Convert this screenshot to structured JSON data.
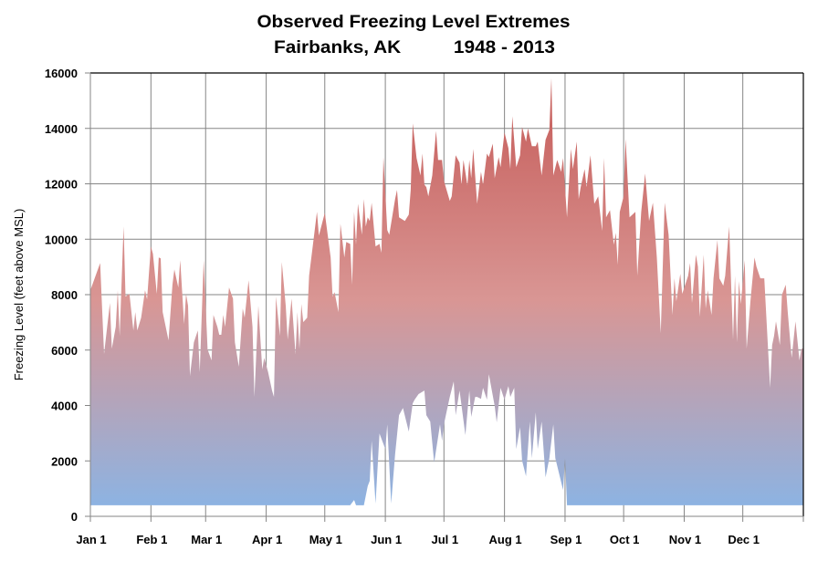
{
  "chart_data": {
    "type": "area",
    "title": "Observed Freezing Level Extremes",
    "subtitle": "Fairbanks, AK          1948 - 2013",
    "xlabel": "",
    "ylabel": "Freezing Level (feet above MSL)",
    "ylim": [
      0,
      16000
    ],
    "yticks": [
      "0",
      "2000",
      "4000",
      "6000",
      "8000",
      "10000",
      "12000",
      "14000",
      "16000"
    ],
    "xticks": [
      "Jan 1",
      "Feb 1",
      "Mar 1",
      "Apr 1",
      "May 1",
      "Jun 1",
      "Jul 1",
      "Aug 1",
      "Sep 1",
      "Oct 1",
      "Nov 1",
      "Dec 1"
    ],
    "grid": true,
    "legend": "none",
    "colors": {
      "top": "#c55a57",
      "middle": "#d99694",
      "bottom": "#8db3e2",
      "grid": "#868686"
    },
    "series": [
      {
        "role": "daily maximum",
        "points": [
          [
            "01-01",
            8160
          ],
          [
            "01-06",
            9140
          ],
          [
            "01-08",
            5860
          ],
          [
            "01-11",
            7700
          ],
          [
            "01-12",
            6050
          ],
          [
            "01-14",
            6840
          ],
          [
            "01-15",
            8160
          ],
          [
            "01-16",
            6510
          ],
          [
            "01-18",
            10460
          ],
          [
            "01-19",
            7930
          ],
          [
            "01-21",
            8030
          ],
          [
            "01-23",
            6710
          ],
          [
            "01-24",
            7370
          ],
          [
            "01-25",
            6710
          ],
          [
            "01-27",
            7170
          ],
          [
            "01-29",
            8160
          ],
          [
            "01-30",
            7830
          ],
          [
            "02-01",
            9740
          ],
          [
            "02-02",
            9470
          ],
          [
            "02-04",
            8030
          ],
          [
            "02-05",
            9340
          ],
          [
            "02-06",
            9310
          ],
          [
            "02-07",
            7370
          ],
          [
            "02-10",
            6350
          ],
          [
            "02-12",
            8360
          ],
          [
            "02-13",
            8910
          ],
          [
            "02-15",
            8260
          ],
          [
            "02-16",
            9240
          ],
          [
            "02-18",
            6940
          ],
          [
            "02-19",
            8030
          ],
          [
            "02-20",
            7600
          ],
          [
            "02-21",
            5070
          ],
          [
            "02-23",
            6280
          ],
          [
            "02-25",
            6710
          ],
          [
            "02-26",
            5200
          ],
          [
            "02-28",
            9240
          ],
          [
            "03-02",
            6020
          ],
          [
            "03-04",
            5630
          ],
          [
            "03-05",
            7270
          ],
          [
            "03-07",
            6840
          ],
          [
            "03-08",
            6550
          ],
          [
            "03-09",
            6550
          ],
          [
            "03-10",
            7270
          ],
          [
            "03-11",
            6840
          ],
          [
            "03-13",
            8260
          ],
          [
            "03-15",
            7860
          ],
          [
            "03-16",
            6280
          ],
          [
            "03-18",
            5400
          ],
          [
            "03-20",
            7500
          ],
          [
            "03-21",
            7170
          ],
          [
            "03-23",
            8520
          ],
          [
            "03-25",
            6840
          ],
          [
            "03-26",
            4310
          ],
          [
            "03-28",
            7600
          ],
          [
            "03-30",
            5300
          ],
          [
            "03-31",
            5720
          ],
          [
            "04-02",
            5200
          ],
          [
            "04-04",
            4540
          ],
          [
            "04-05",
            4310
          ],
          [
            "04-06",
            7930
          ],
          [
            "04-08",
            6510
          ],
          [
            "04-09",
            9180
          ],
          [
            "04-11",
            7600
          ],
          [
            "04-12",
            6380
          ],
          [
            "04-14",
            7860
          ],
          [
            "04-16",
            5860
          ],
          [
            "04-17",
            7370
          ],
          [
            "04-18",
            6050
          ],
          [
            "04-19",
            7660
          ],
          [
            "04-20",
            7010
          ],
          [
            "04-22",
            7170
          ],
          [
            "04-23",
            8680
          ],
          [
            "04-25",
            9830
          ],
          [
            "04-27",
            10990
          ],
          [
            "04-28",
            10130
          ],
          [
            "05-01",
            10950
          ],
          [
            "05-04",
            9340
          ],
          [
            "05-05",
            7930
          ],
          [
            "05-06",
            8090
          ],
          [
            "05-08",
            7370
          ],
          [
            "05-09",
            10560
          ],
          [
            "05-11",
            9340
          ],
          [
            "05-12",
            9900
          ],
          [
            "05-14",
            9830
          ],
          [
            "05-15",
            8360
          ],
          [
            "05-16",
            10990
          ],
          [
            "05-17",
            9800
          ],
          [
            "05-18",
            11280
          ],
          [
            "05-20",
            10160
          ],
          [
            "05-21",
            11450
          ],
          [
            "05-22",
            10460
          ],
          [
            "05-23",
            10790
          ],
          [
            "05-24",
            10660
          ],
          [
            "05-25",
            11320
          ],
          [
            "05-27",
            9740
          ],
          [
            "05-29",
            9830
          ],
          [
            "05-30",
            9510
          ],
          [
            "05-31",
            12960
          ],
          [
            "06-02",
            10330
          ],
          [
            "06-03",
            10160
          ],
          [
            "06-06",
            11450
          ],
          [
            "06-07",
            11780
          ],
          [
            "06-08",
            10790
          ],
          [
            "06-11",
            10660
          ],
          [
            "06-13",
            10890
          ],
          [
            "06-14",
            11780
          ],
          [
            "06-15",
            14180
          ],
          [
            "06-17",
            12930
          ],
          [
            "06-19",
            12300
          ],
          [
            "06-20",
            13090
          ],
          [
            "06-21",
            11970
          ],
          [
            "06-22",
            11880
          ],
          [
            "06-23",
            11550
          ],
          [
            "06-25",
            12300
          ],
          [
            "06-27",
            13910
          ],
          [
            "06-28",
            12860
          ],
          [
            "06-30",
            12860
          ],
          [
            "07-01",
            12110
          ],
          [
            "07-04",
            11380
          ],
          [
            "07-05",
            11550
          ],
          [
            "07-07",
            13030
          ],
          [
            "07-09",
            12760
          ],
          [
            "07-10",
            11970
          ],
          [
            "07-11",
            12860
          ],
          [
            "07-13",
            11940
          ],
          [
            "07-14",
            12860
          ],
          [
            "07-15",
            12200
          ],
          [
            "07-16",
            13260
          ],
          [
            "07-18",
            11280
          ],
          [
            "07-20",
            12430
          ],
          [
            "07-21",
            11970
          ],
          [
            "07-23",
            13090
          ],
          [
            "07-24",
            12960
          ],
          [
            "07-26",
            13450
          ],
          [
            "07-27",
            12200
          ],
          [
            "07-29",
            12960
          ],
          [
            "07-30",
            12600
          ],
          [
            "08-01",
            13850
          ],
          [
            "08-03",
            13290
          ],
          [
            "08-04",
            12530
          ],
          [
            "08-05",
            14440
          ],
          [
            "08-07",
            12600
          ],
          [
            "08-09",
            13030
          ],
          [
            "08-10",
            14050
          ],
          [
            "08-12",
            13520
          ],
          [
            "08-13",
            14000
          ],
          [
            "08-15",
            13360
          ],
          [
            "08-17",
            13360
          ],
          [
            "08-18",
            13520
          ],
          [
            "08-20",
            12300
          ],
          [
            "08-22",
            13590
          ],
          [
            "08-24",
            13950
          ],
          [
            "08-25",
            15820
          ],
          [
            "08-26",
            12300
          ],
          [
            "08-28",
            12860
          ],
          [
            "08-30",
            12430
          ],
          [
            "08-31",
            12930
          ],
          [
            "09-02",
            10790
          ],
          [
            "09-04",
            13260
          ],
          [
            "09-05",
            12530
          ],
          [
            "09-07",
            13520
          ],
          [
            "09-08",
            11450
          ],
          [
            "09-09",
            11880
          ],
          [
            "09-11",
            12530
          ],
          [
            "09-12",
            11880
          ],
          [
            "09-14",
            13030
          ],
          [
            "09-16",
            11280
          ],
          [
            "09-18",
            11550
          ],
          [
            "09-20",
            10300
          ],
          [
            "09-21",
            12930
          ],
          [
            "09-22",
            10790
          ],
          [
            "09-24",
            11050
          ],
          [
            "09-26",
            9800
          ],
          [
            "09-27",
            10230
          ],
          [
            "09-28",
            9080
          ],
          [
            "09-29",
            10990
          ],
          [
            "10-01",
            11550
          ],
          [
            "10-02",
            13620
          ],
          [
            "10-04",
            10790
          ],
          [
            "10-07",
            10990
          ],
          [
            "10-08",
            8680
          ],
          [
            "10-10",
            10990
          ],
          [
            "10-12",
            12370
          ],
          [
            "10-14",
            10660
          ],
          [
            "10-15",
            10990
          ],
          [
            "10-16",
            11320
          ],
          [
            "10-18",
            9340
          ],
          [
            "10-20",
            6610
          ],
          [
            "10-22",
            11320
          ],
          [
            "10-24",
            10160
          ],
          [
            "10-26",
            7270
          ],
          [
            "10-27",
            8590
          ],
          [
            "10-28",
            7760
          ],
          [
            "10-30",
            8750
          ],
          [
            "10-31",
            8030
          ],
          [
            "11-03",
            8680
          ],
          [
            "11-04",
            9140
          ],
          [
            "11-05",
            7700
          ],
          [
            "11-07",
            9440
          ],
          [
            "11-08",
            9010
          ],
          [
            "11-09",
            7200
          ],
          [
            "11-11",
            9440
          ],
          [
            "11-12",
            7500
          ],
          [
            "11-13",
            8160
          ],
          [
            "11-15",
            7270
          ],
          [
            "11-16",
            8590
          ],
          [
            "11-18",
            9970
          ],
          [
            "11-19",
            8590
          ],
          [
            "11-21",
            8320
          ],
          [
            "11-22",
            8680
          ],
          [
            "11-24",
            10460
          ],
          [
            "11-26",
            6380
          ],
          [
            "11-27",
            8680
          ],
          [
            "11-28",
            6280
          ],
          [
            "11-29",
            8490
          ],
          [
            "11-30",
            7660
          ],
          [
            "12-02",
            9240
          ],
          [
            "12-03",
            6050
          ],
          [
            "12-05",
            7830
          ],
          [
            "12-07",
            9340
          ],
          [
            "12-08",
            9010
          ],
          [
            "12-10",
            8590
          ],
          [
            "12-12",
            8590
          ],
          [
            "12-15",
            4640
          ],
          [
            "12-16",
            6180
          ],
          [
            "12-17",
            6510
          ],
          [
            "12-18",
            7040
          ],
          [
            "12-20",
            6180
          ],
          [
            "12-21",
            7990
          ],
          [
            "12-23",
            8360
          ],
          [
            "12-24",
            7370
          ],
          [
            "12-26",
            5720
          ],
          [
            "12-28",
            7040
          ],
          [
            "12-30",
            5630
          ],
          [
            "12-31",
            6050
          ]
        ]
      },
      {
        "role": "daily minimum",
        "points": [
          [
            "01-01",
            400
          ],
          [
            "05-14",
            400
          ],
          [
            "05-16",
            590
          ],
          [
            "05-17",
            400
          ],
          [
            "05-21",
            400
          ],
          [
            "05-23",
            1090
          ],
          [
            "05-24",
            1280
          ],
          [
            "05-25",
            2730
          ],
          [
            "05-27",
            460
          ],
          [
            "05-29",
            2990
          ],
          [
            "06-01",
            2430
          ],
          [
            "06-02",
            3320
          ],
          [
            "06-04",
            460
          ],
          [
            "06-06",
            2240
          ],
          [
            "06-08",
            3650
          ],
          [
            "06-10",
            3910
          ],
          [
            "06-13",
            3060
          ],
          [
            "06-15",
            4080
          ],
          [
            "06-16",
            4210
          ],
          [
            "06-18",
            4410
          ],
          [
            "06-21",
            4540
          ],
          [
            "06-22",
            3650
          ],
          [
            "06-24",
            3420
          ],
          [
            "06-26",
            1940
          ],
          [
            "06-29",
            3320
          ],
          [
            "06-30",
            2730
          ],
          [
            "07-01",
            3320
          ],
          [
            "07-02",
            3650
          ],
          [
            "07-04",
            4310
          ],
          [
            "07-06",
            4870
          ],
          [
            "07-07",
            3650
          ],
          [
            "07-09",
            4540
          ],
          [
            "07-12",
            2930
          ],
          [
            "07-14",
            4540
          ],
          [
            "07-15",
            3590
          ],
          [
            "07-17",
            4310
          ],
          [
            "07-18",
            4310
          ],
          [
            "07-20",
            4240
          ],
          [
            "07-21",
            4640
          ],
          [
            "07-23",
            4210
          ],
          [
            "07-24",
            5130
          ],
          [
            "07-27",
            3980
          ],
          [
            "07-28",
            3390
          ],
          [
            "07-30",
            4640
          ],
          [
            "08-01",
            4210
          ],
          [
            "08-03",
            4700
          ],
          [
            "08-04",
            4310
          ],
          [
            "08-06",
            4640
          ],
          [
            "08-07",
            2430
          ],
          [
            "08-09",
            3220
          ],
          [
            "08-10",
            2010
          ],
          [
            "08-12",
            1450
          ],
          [
            "08-14",
            3420
          ],
          [
            "08-15",
            2100
          ],
          [
            "08-17",
            3750
          ],
          [
            "08-18",
            2430
          ],
          [
            "08-20",
            3420
          ],
          [
            "08-22",
            1410
          ],
          [
            "08-24",
            2100
          ],
          [
            "08-26",
            3320
          ],
          [
            "08-27",
            2100
          ],
          [
            "08-31",
            950
          ],
          [
            "09-01",
            2100
          ],
          [
            "09-02",
            400
          ],
          [
            "12-31",
            400
          ]
        ]
      }
    ]
  }
}
